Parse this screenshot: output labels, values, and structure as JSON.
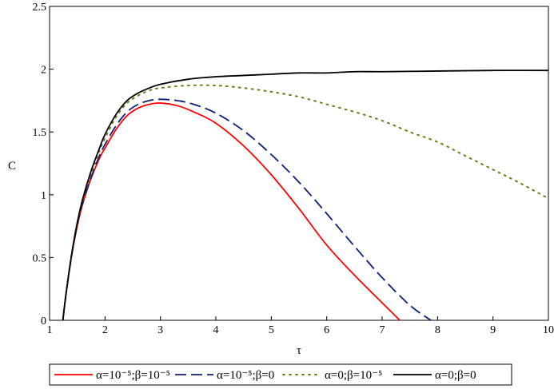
{
  "chart_data": {
    "type": "line",
    "title": "",
    "xlabel": "τ",
    "ylabel": "C",
    "xlim": [
      1,
      10
    ],
    "ylim": [
      0,
      2.5
    ],
    "xticks": [
      1,
      2,
      3,
      4,
      5,
      6,
      7,
      8,
      9,
      10
    ],
    "yticks": [
      0,
      0.5,
      1,
      1.5,
      2,
      2.5
    ],
    "ytick_labels": [
      "0",
      "0.5",
      "1",
      "1.5",
      "2",
      "2.5"
    ],
    "grid": false,
    "legend_position": "bottom",
    "series": [
      {
        "name": "α=10⁻⁵;β=10⁻⁵",
        "color": "#ff0000",
        "dash": "solid",
        "x": [
          1.24,
          1.3,
          1.4,
          1.5,
          1.6,
          1.75,
          1.9,
          2.0,
          2.2,
          2.4,
          2.6,
          2.8,
          3.0,
          3.3,
          3.6,
          4.0,
          4.5,
          5.0,
          5.5,
          6.0,
          6.5,
          7.0,
          7.32
        ],
        "y": [
          0.0,
          0.22,
          0.52,
          0.75,
          0.93,
          1.13,
          1.29,
          1.37,
          1.52,
          1.63,
          1.69,
          1.72,
          1.73,
          1.71,
          1.66,
          1.57,
          1.39,
          1.16,
          0.89,
          0.6,
          0.36,
          0.14,
          0.0
        ]
      },
      {
        "name": "α=10⁻⁵;β=0",
        "color": "#0a1f7a",
        "dash": "dashed",
        "x": [
          1.24,
          1.3,
          1.4,
          1.5,
          1.6,
          1.75,
          1.9,
          2.0,
          2.2,
          2.4,
          2.6,
          2.8,
          3.0,
          3.3,
          3.6,
          4.0,
          4.5,
          5.0,
          5.5,
          6.0,
          6.5,
          7.0,
          7.5,
          7.88
        ],
        "y": [
          0.0,
          0.22,
          0.52,
          0.76,
          0.94,
          1.14,
          1.31,
          1.4,
          1.55,
          1.66,
          1.72,
          1.75,
          1.76,
          1.75,
          1.72,
          1.65,
          1.51,
          1.32,
          1.1,
          0.85,
          0.59,
          0.34,
          0.12,
          0.0
        ]
      },
      {
        "name": "α=0;β=10⁻⁵",
        "color": "#6b7d1a",
        "dash": "dotted",
        "x": [
          1.24,
          1.3,
          1.4,
          1.5,
          1.6,
          1.75,
          1.9,
          2.0,
          2.2,
          2.4,
          2.6,
          2.8,
          3.0,
          3.5,
          4.0,
          4.5,
          5.0,
          5.5,
          6.0,
          6.5,
          7.0,
          7.5,
          8.0,
          8.5,
          9.0,
          9.5,
          10.0
        ],
        "y": [
          0.0,
          0.22,
          0.53,
          0.77,
          0.96,
          1.17,
          1.35,
          1.45,
          1.62,
          1.73,
          1.79,
          1.83,
          1.85,
          1.87,
          1.87,
          1.85,
          1.82,
          1.78,
          1.72,
          1.66,
          1.59,
          1.5,
          1.42,
          1.31,
          1.2,
          1.09,
          0.97
        ]
      },
      {
        "name": "α=0;β=0",
        "color": "#000000",
        "dash": "solid",
        "x": [
          1.24,
          1.3,
          1.4,
          1.5,
          1.6,
          1.75,
          1.9,
          2.0,
          2.2,
          2.4,
          2.6,
          2.8,
          3.0,
          3.5,
          4.0,
          4.5,
          5.0,
          5.5,
          6.0,
          6.5,
          7.0,
          8.0,
          9.0,
          10.0
        ],
        "y": [
          0.0,
          0.22,
          0.53,
          0.78,
          0.97,
          1.19,
          1.37,
          1.48,
          1.64,
          1.75,
          1.81,
          1.85,
          1.88,
          1.92,
          1.94,
          1.95,
          1.96,
          1.97,
          1.97,
          1.98,
          1.98,
          1.985,
          1.99,
          1.99
        ]
      }
    ]
  }
}
